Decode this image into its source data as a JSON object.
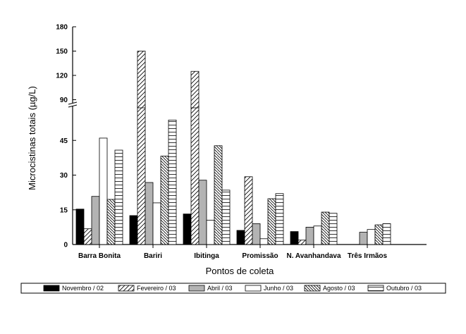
{
  "chart_data": {
    "type": "bar",
    "xlabel": "Pontos de coleta",
    "ylabel": "Microcistinas totais (µg/L)",
    "categories": [
      "Barra Bonita",
      "Bariri",
      "Ibitinga",
      "Promissão",
      "N. Avanhandava",
      "Três Irmãos"
    ],
    "axis_break": {
      "lower_range": [
        0,
        60
      ],
      "upper_range": [
        80,
        180
      ]
    },
    "yticks": [
      0,
      15,
      30,
      45,
      90,
      120,
      150,
      180
    ],
    "legend_position": "bottom",
    "grid": false,
    "series": [
      {
        "name": "Novembro / 02",
        "pattern": "solid-black",
        "values": [
          15.3,
          12.5,
          13.2,
          6.1,
          5.6,
          0
        ]
      },
      {
        "name": "Fevereiro / 03",
        "pattern": "diagonal-right",
        "values": [
          6.8,
          150,
          125,
          29.3,
          1.9,
          0
        ]
      },
      {
        "name": "Abril / 03",
        "pattern": "solid-gray",
        "values": [
          20.8,
          26.8,
          27.8,
          9.0,
          7.5,
          5.3
        ]
      },
      {
        "name": "Junho / 03",
        "pattern": "solid-white",
        "values": [
          46,
          18,
          10.5,
          2.5,
          8.0,
          6.5
        ]
      },
      {
        "name": "Agosto / 03",
        "pattern": "diagonal-left",
        "values": [
          19.5,
          38.2,
          42.7,
          19.8,
          14.0,
          8.5
        ]
      },
      {
        "name": "Outubro / 03",
        "pattern": "horizontal-lines",
        "values": [
          40.8,
          53.8,
          23.5,
          22.0,
          13.5,
          9.0
        ]
      }
    ]
  }
}
